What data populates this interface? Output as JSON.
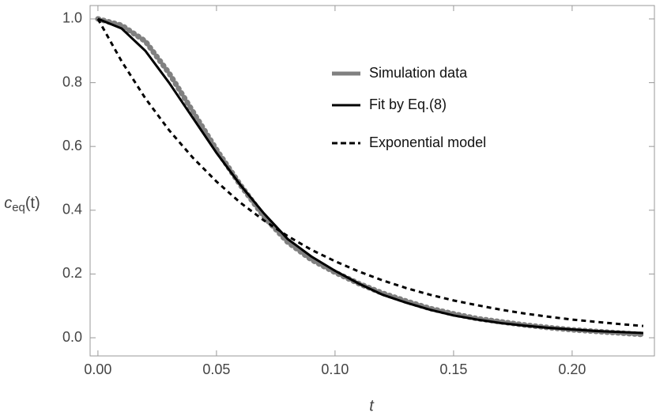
{
  "chart_data": {
    "type": "line",
    "xlabel": "t",
    "ylabel": {
      "base": "c",
      "sub": "eq",
      "suffix": "(t)"
    },
    "x": [
      0,
      0.01,
      0.02,
      0.03,
      0.04,
      0.05,
      0.06,
      0.07,
      0.08,
      0.09,
      0.1,
      0.11,
      0.12,
      0.13,
      0.14,
      0.15,
      0.16,
      0.17,
      0.18,
      0.19,
      0.2,
      0.21,
      0.22,
      0.23
    ],
    "series": [
      {
        "name": "Simulation data",
        "color": "#808080",
        "style": "thick",
        "values": [
          1.0,
          0.98,
          0.93,
          0.83,
          0.71,
          0.59,
          0.48,
          0.38,
          0.3,
          0.245,
          0.205,
          0.17,
          0.14,
          0.115,
          0.092,
          0.075,
          0.06,
          0.05,
          0.04,
          0.032,
          0.025,
          0.02,
          0.015,
          0.01
        ]
      },
      {
        "name": "Fit by Eq.(8)",
        "color": "#000000",
        "style": "solid",
        "values": [
          1.0,
          0.97,
          0.9,
          0.8,
          0.69,
          0.58,
          0.48,
          0.39,
          0.31,
          0.255,
          0.21,
          0.17,
          0.135,
          0.11,
          0.088,
          0.07,
          0.057,
          0.046,
          0.038,
          0.031,
          0.026,
          0.021,
          0.018,
          0.015
        ]
      },
      {
        "name": "Exponential model",
        "color": "#000000",
        "style": "dashed",
        "values": [
          1.0,
          0.867,
          0.751,
          0.651,
          0.565,
          0.49,
          0.424,
          0.368,
          0.319,
          0.276,
          0.24,
          0.208,
          0.18,
          0.156,
          0.135,
          0.117,
          0.102,
          0.088,
          0.076,
          0.066,
          0.057,
          0.05,
          0.043,
          0.037
        ]
      }
    ],
    "xlim": [
      -0.0033,
      0.2347
    ],
    "ylim": [
      -0.057,
      1.042
    ],
    "xticks": [
      {
        "value": 0,
        "label": "0.00"
      },
      0.05,
      {
        "value": 0.1,
        "label": "0.10"
      },
      0.15,
      {
        "value": 0.2,
        "label": "0.20"
      }
    ],
    "yticks": [
      {
        "value": 0,
        "label": "0.0"
      },
      0.2,
      0.4,
      0.6,
      0.8,
      {
        "value": 1,
        "label": "1.0"
      }
    ],
    "legend": "center right"
  }
}
